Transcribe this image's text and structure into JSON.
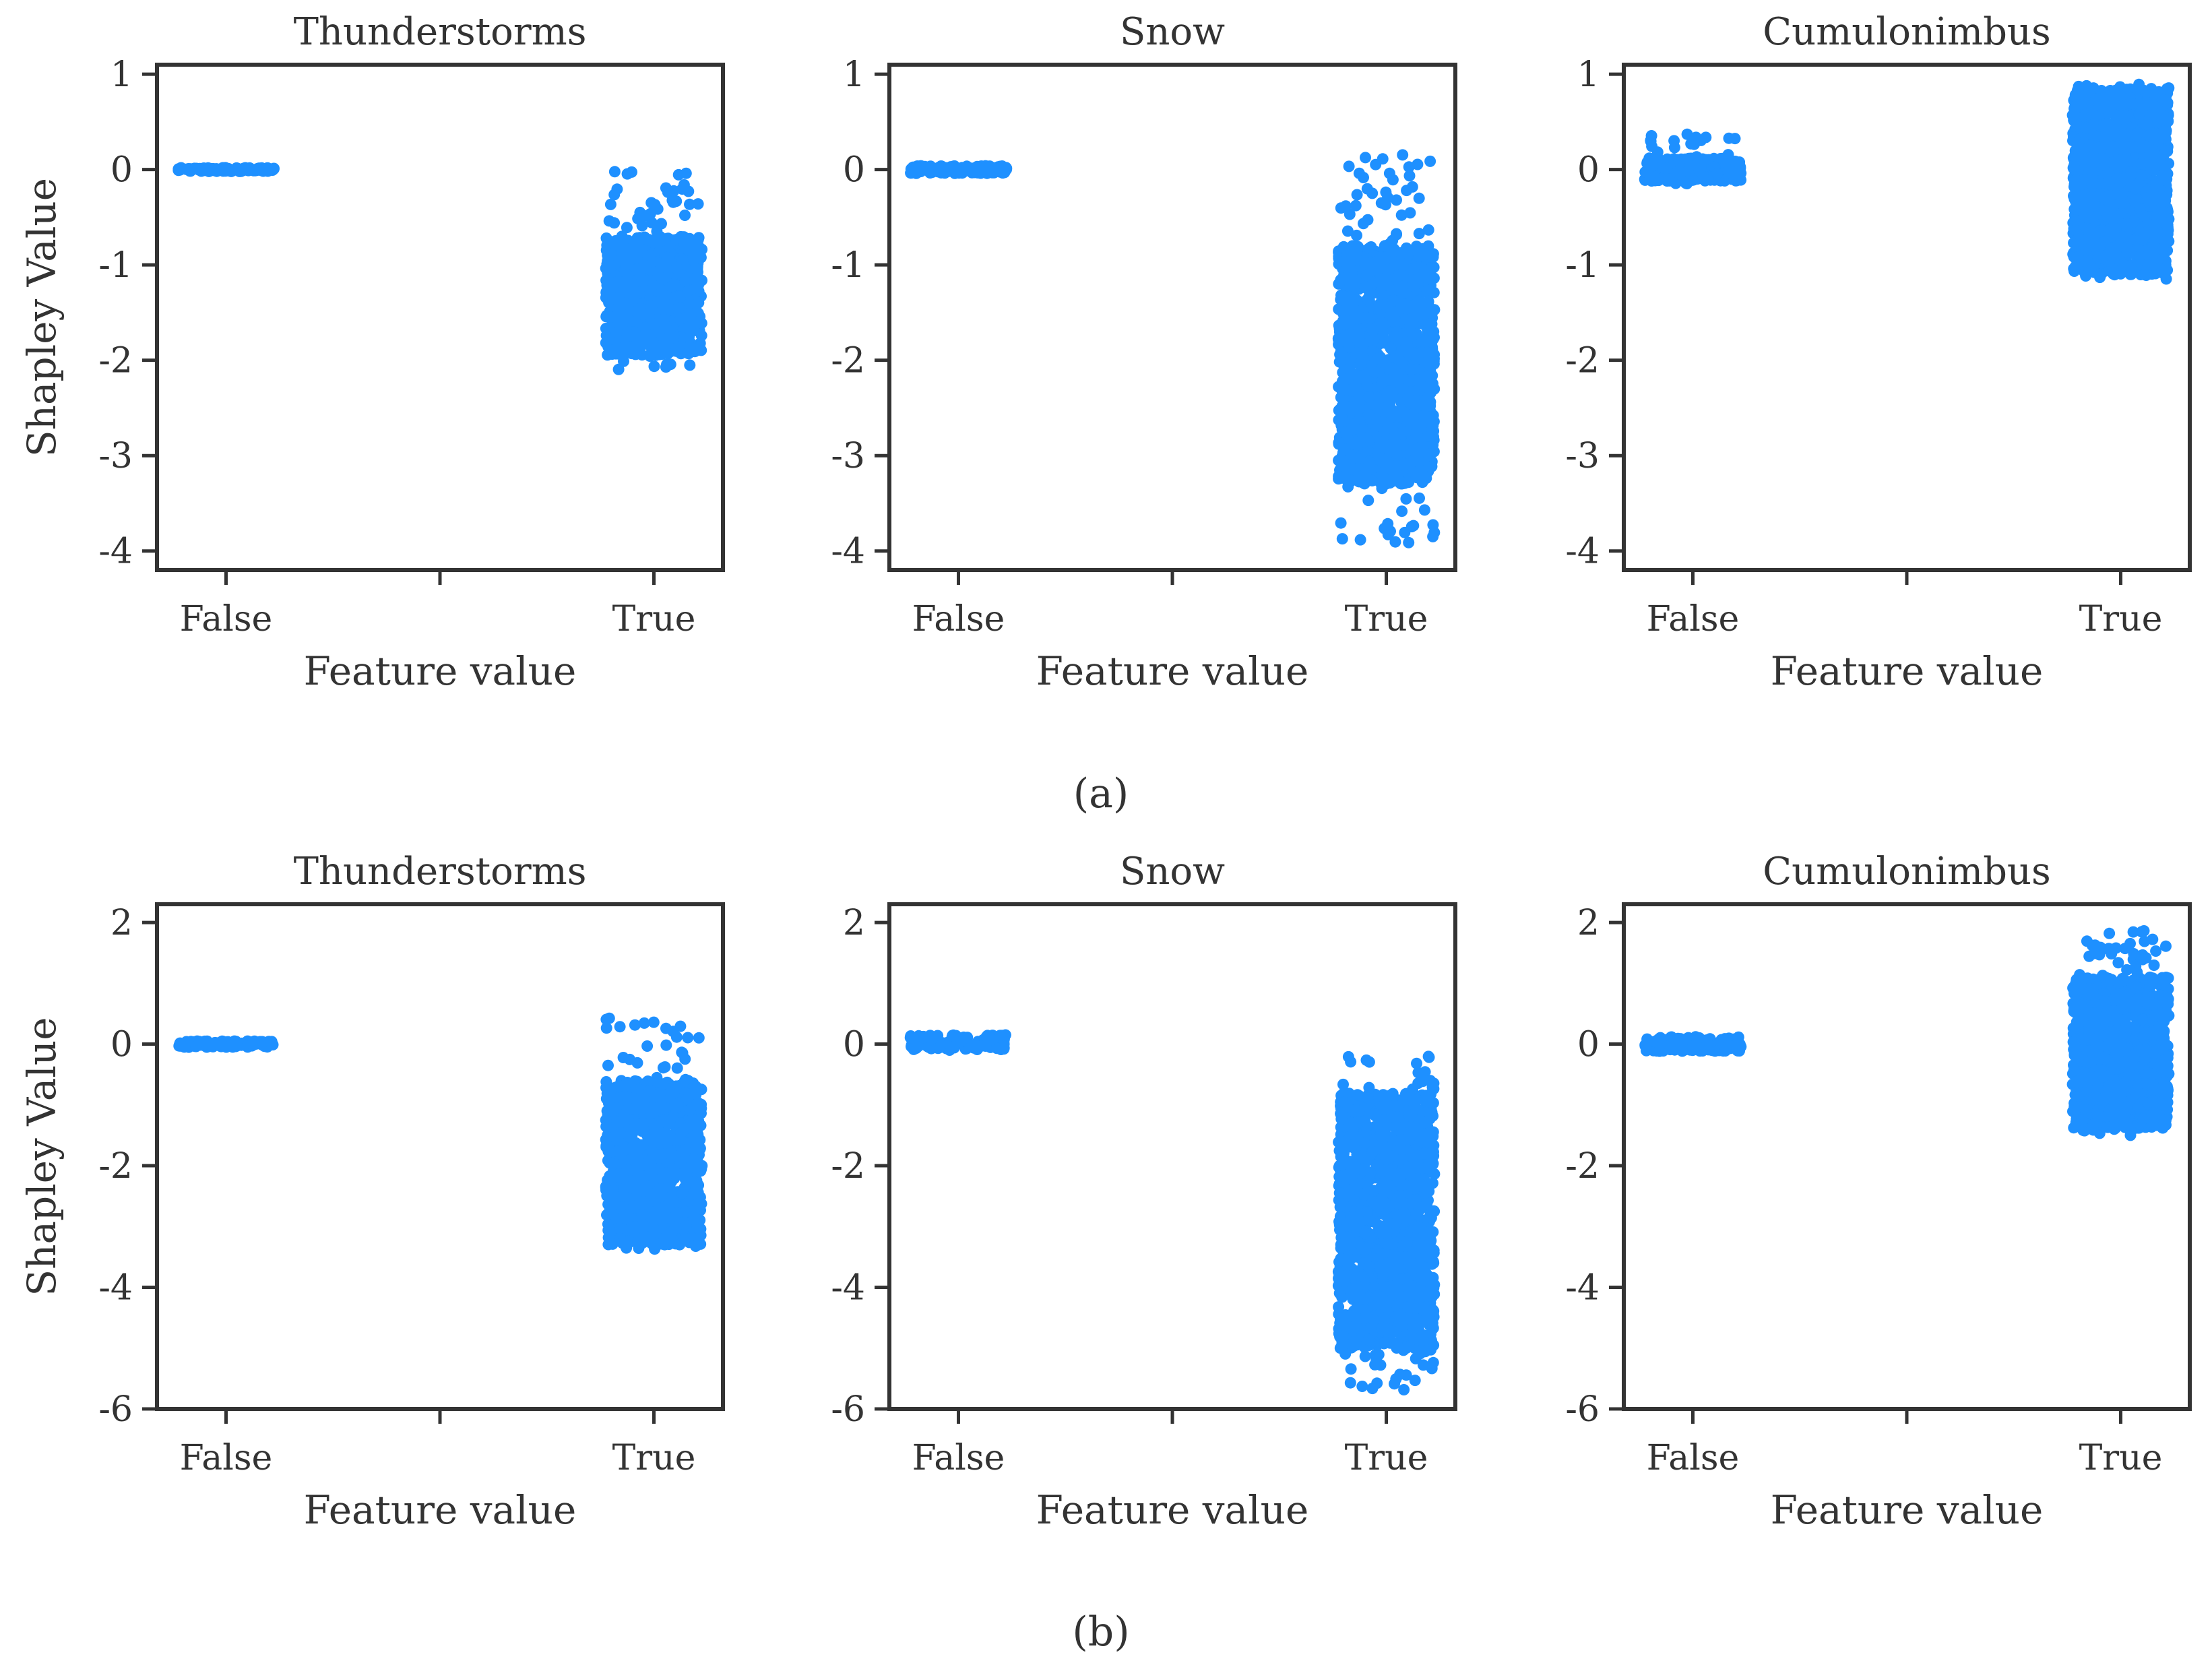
{
  "colors": {
    "points": "#1e90ff",
    "axes": "#333333",
    "background": "#ffffff"
  },
  "panel_labels": [
    "(a)",
    "(b)"
  ],
  "chart_data": [
    {
      "type": "scatter",
      "group": "a",
      "title": "Thunderstorms",
      "xlabel": "Feature value",
      "ylabel": "Shapley Value",
      "categories": [
        "False",
        "True"
      ],
      "ylim": [
        -4.2,
        1.1
      ],
      "yticks": [
        1,
        0,
        -1,
        -2,
        -3,
        -4
      ],
      "ytick_labels": [
        "1",
        "0",
        "-1",
        "-2",
        "-3",
        "-4"
      ],
      "series": [
        {
          "category": "False",
          "value_range": [
            -0.02,
            0.02
          ],
          "n_points": 120
        },
        {
          "category": "True",
          "value_range": [
            -2.1,
            0.0
          ],
          "dense_range": [
            -1.95,
            -0.7
          ],
          "n_points": 900
        }
      ]
    },
    {
      "type": "scatter",
      "group": "a",
      "title": "Snow",
      "xlabel": "Feature value",
      "ylabel": "",
      "categories": [
        "False",
        "True"
      ],
      "ylim": [
        -4.2,
        1.1
      ],
      "yticks": [
        1,
        0,
        -1,
        -2,
        -3,
        -4
      ],
      "ytick_labels": [
        "1",
        "0",
        "-1",
        "-2",
        "-3",
        "-4"
      ],
      "series": [
        {
          "category": "False",
          "value_range": [
            -0.04,
            0.04
          ],
          "n_points": 140
        },
        {
          "category": "True",
          "value_range": [
            -3.95,
            0.2
          ],
          "dense_range": [
            -3.3,
            -0.8
          ],
          "n_points": 1400
        }
      ]
    },
    {
      "type": "scatter",
      "group": "a",
      "title": "Cumulonimbus",
      "xlabel": "Feature value",
      "ylabel": "",
      "categories": [
        "False",
        "True"
      ],
      "ylim": [
        -4.2,
        1.1
      ],
      "yticks": [
        1,
        0,
        -1,
        -2,
        -3,
        -4
      ],
      "ytick_labels": [
        "1",
        "0",
        "-1",
        "-2",
        "-3",
        "-4"
      ],
      "series": [
        {
          "category": "False",
          "value_range": [
            -0.15,
            0.4
          ],
          "dense_range": [
            -0.12,
            0.12
          ],
          "n_points": 300
        },
        {
          "category": "True",
          "value_range": [
            -1.15,
            0.9
          ],
          "dense_range": [
            -1.1,
            0.85
          ],
          "n_points": 1400
        }
      ]
    },
    {
      "type": "scatter",
      "group": "b",
      "title": "Thunderstorms",
      "xlabel": "Feature value",
      "ylabel": "Shapley Value",
      "categories": [
        "False",
        "True"
      ],
      "ylim": [
        -6.0,
        2.3
      ],
      "yticks": [
        2,
        0,
        -2,
        -4,
        -6
      ],
      "ytick_labels": [
        "2",
        "0",
        "-2",
        "-4",
        "-6"
      ],
      "series": [
        {
          "category": "False",
          "value_range": [
            -0.05,
            0.05
          ],
          "n_points": 120
        },
        {
          "category": "True",
          "value_range": [
            -3.4,
            0.5
          ],
          "dense_range": [
            -3.3,
            -0.6
          ],
          "n_points": 1000
        }
      ]
    },
    {
      "type": "scatter",
      "group": "b",
      "title": "Snow",
      "xlabel": "Feature value",
      "ylabel": "",
      "categories": [
        "False",
        "True"
      ],
      "ylim": [
        -6.0,
        2.3
      ],
      "yticks": [
        2,
        0,
        -2,
        -4,
        -6
      ],
      "ytick_labels": [
        "2",
        "0",
        "-2",
        "-4",
        "-6"
      ],
      "series": [
        {
          "category": "False",
          "value_range": [
            -0.1,
            0.15
          ],
          "n_points": 140
        },
        {
          "category": "True",
          "value_range": [
            -5.7,
            -0.2
          ],
          "dense_range": [
            -5.0,
            -0.8
          ],
          "n_points": 1500
        }
      ]
    },
    {
      "type": "scatter",
      "group": "b",
      "title": "Cumulonimbus",
      "xlabel": "Feature value",
      "ylabel": "",
      "categories": [
        "False",
        "True"
      ],
      "ylim": [
        -6.0,
        2.3
      ],
      "yticks": [
        2,
        0,
        -2,
        -4,
        -6
      ],
      "ytick_labels": [
        "2",
        "0",
        "-2",
        "-4",
        "-6"
      ],
      "series": [
        {
          "category": "False",
          "value_range": [
            -0.12,
            0.12
          ],
          "n_points": 160
        },
        {
          "category": "True",
          "value_range": [
            -1.5,
            1.9
          ],
          "dense_range": [
            -1.4,
            1.1
          ],
          "n_points": 1400
        }
      ]
    }
  ]
}
